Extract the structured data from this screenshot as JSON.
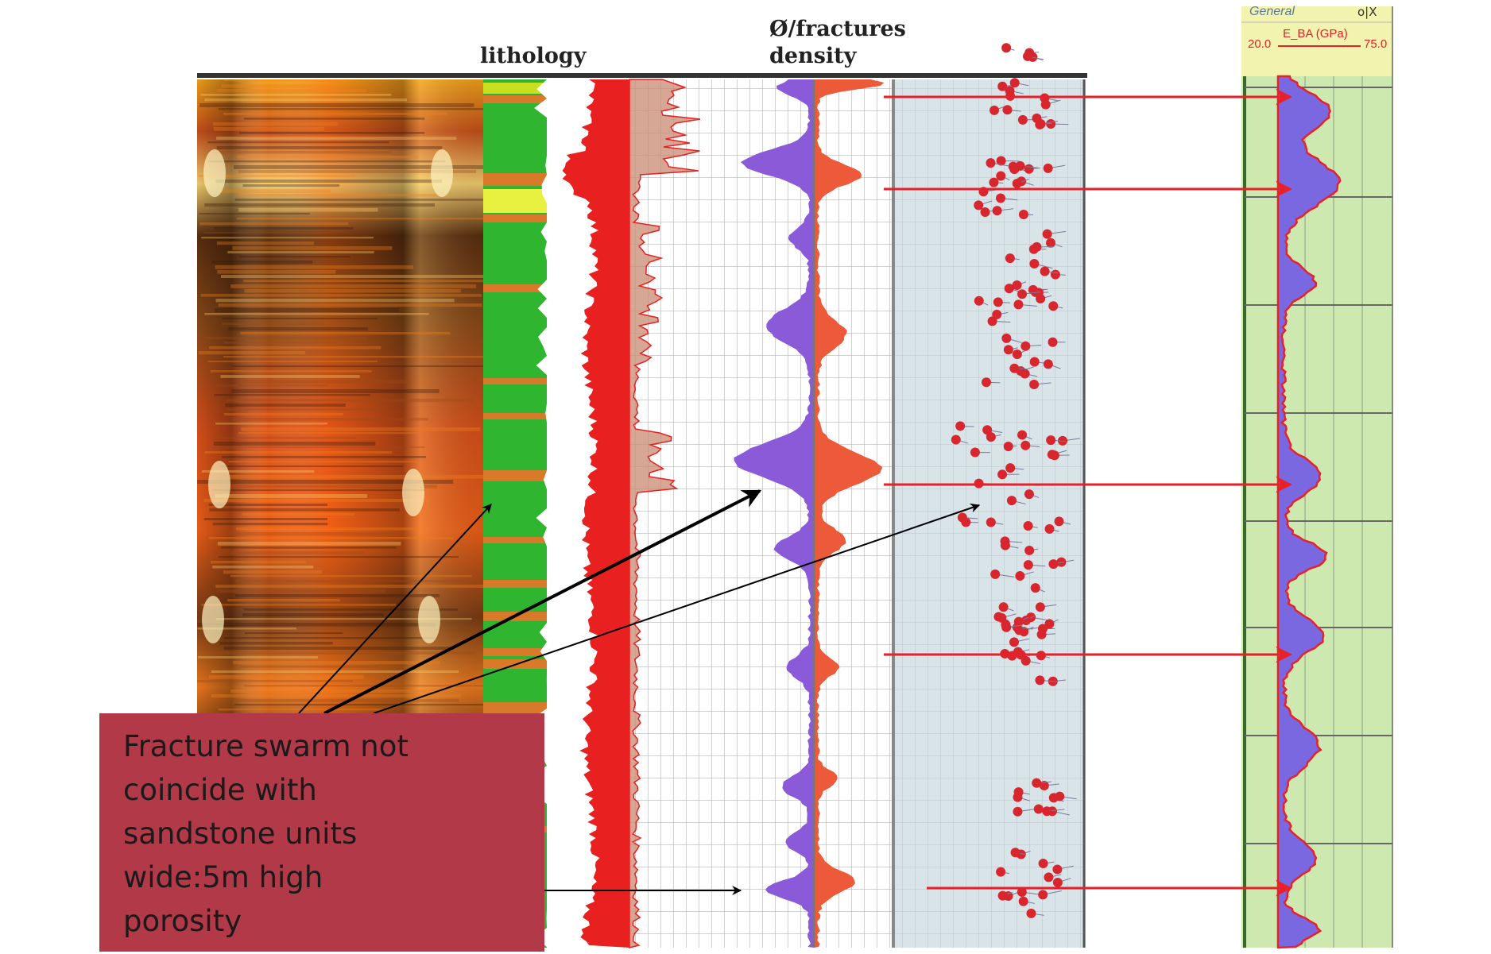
{
  "headers": {
    "lithology": "lithology",
    "porosity_line1": "Ø/fractures",
    "porosity_line2": "density"
  },
  "callout": {
    "text": "Fracture swarm not\ncoincide with\nsandstone units\nwide:5m high\nporosity"
  },
  "side_panel": {
    "title": "General",
    "controls": "o|X",
    "curve_name": "E_BA (GPa)",
    "scale_min": "20.0",
    "scale_max": "75.0"
  },
  "colors": {
    "background": "#ffffff",
    "image_log_dark": "#5a2e10",
    "image_log_orange": "#f07a1e",
    "lithology_green": "#2fb52f",
    "shale_orange": "#d97a2a",
    "curve_red": "#e82020",
    "porosity_purple": "#8a5ad8",
    "panel_green": "#cde9b0",
    "panel_header": "#f3f3b0",
    "callout_red": "#b23a48",
    "arrow_red": "#e8202a",
    "arrow_black": "#000000"
  },
  "icons": [
    "arrow-right-icon",
    "arrow-black-icon"
  ]
}
